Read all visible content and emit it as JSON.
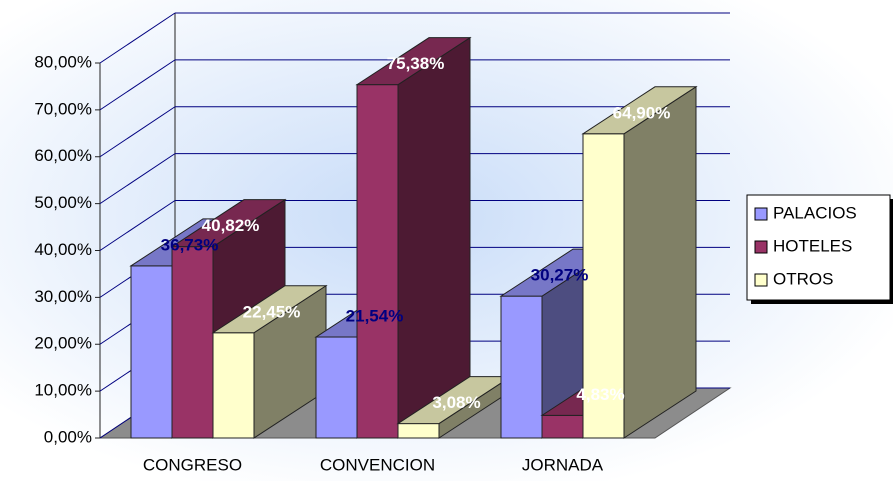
{
  "chart_data": {
    "type": "bar",
    "categories": [
      "CONGRESO",
      "CONVENCION",
      "JORNADA"
    ],
    "series": [
      {
        "name": "PALACIOS",
        "color": "#9999ff",
        "label_color": "#000080",
        "values": [
          36.73,
          21.54,
          30.27
        ],
        "value_labels": [
          "36,73%",
          "21,54%",
          "30,27%"
        ]
      },
      {
        "name": "HOTELES",
        "color": "#993366",
        "label_color": "#ffffff",
        "values": [
          40.82,
          75.38,
          4.83
        ],
        "value_labels": [
          "40,82%",
          "75,38%",
          "4,83%"
        ]
      },
      {
        "name": "OTROS",
        "color": "#ffffcc",
        "label_color": "#ffffff",
        "values": [
          22.45,
          3.08,
          64.9
        ],
        "value_labels": [
          "22,45%",
          "3,08%",
          "64,90%"
        ]
      }
    ],
    "ylim": [
      0,
      80
    ],
    "yticks": [
      {
        "value": 0,
        "label": "0,00%"
      },
      {
        "value": 10,
        "label": "10,00%"
      },
      {
        "value": 20,
        "label": "20,00%"
      },
      {
        "value": 30,
        "label": "30,00%"
      },
      {
        "value": 40,
        "label": "40,00%"
      },
      {
        "value": 50,
        "label": "50,00%"
      },
      {
        "value": 60,
        "label": "60,00%"
      },
      {
        "value": 70,
        "label": "70,00%"
      },
      {
        "value": 80,
        "label": "80,00%"
      }
    ],
    "grid": true,
    "legend": "right"
  }
}
